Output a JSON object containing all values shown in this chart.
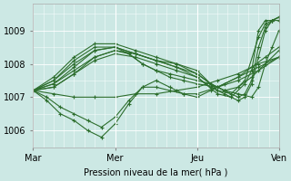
{
  "title": "",
  "xlabel": "Pression niveau de la mer( hPa )",
  "ylabel": "",
  "bg_color": "#cce8e4",
  "plot_bg_color": "#cce8e4",
  "line_color": "#2d6e2d",
  "ylim": [
    1005.5,
    1009.8
  ],
  "xlim": [
    0,
    72
  ],
  "xtick_labels": [
    "Mar",
    "Mer",
    "Jeu",
    "Ven"
  ],
  "xtick_positions": [
    0,
    24,
    48,
    72
  ],
  "ytick_labels": [
    "1006",
    "1007",
    "1008",
    "1009"
  ],
  "ytick_values": [
    1006,
    1007,
    1008,
    1009
  ],
  "grid_color": "#b0d8d2",
  "series": [
    {
      "x": [
        0,
        6,
        12,
        18,
        24,
        30,
        36,
        42,
        48,
        54,
        60,
        66,
        72
      ],
      "y": [
        1007.2,
        1007.1,
        1007.0,
        1007.0,
        1007.0,
        1007.1,
        1007.1,
        1007.2,
        1007.3,
        1007.5,
        1007.7,
        1008.0,
        1008.2
      ]
    },
    {
      "x": [
        0,
        4,
        8,
        12,
        16,
        20,
        24,
        28,
        32,
        36,
        40,
        44,
        48,
        52,
        56,
        60,
        64,
        68,
        72
      ],
      "y": [
        1007.2,
        1006.9,
        1006.5,
        1006.3,
        1006.0,
        1005.8,
        1006.2,
        1006.8,
        1007.3,
        1007.5,
        1007.3,
        1007.1,
        1007.0,
        1007.2,
        1007.4,
        1007.6,
        1007.9,
        1008.2,
        1008.5
      ]
    },
    {
      "x": [
        0,
        4,
        8,
        12,
        16,
        20,
        24,
        28,
        32,
        36,
        40,
        44,
        48,
        54,
        60,
        66,
        72
      ],
      "y": [
        1007.2,
        1007.0,
        1006.7,
        1006.5,
        1006.3,
        1006.1,
        1006.4,
        1006.9,
        1007.3,
        1007.3,
        1007.2,
        1007.1,
        1007.1,
        1007.3,
        1007.6,
        1007.9,
        1008.2
      ]
    },
    {
      "x": [
        0,
        6,
        12,
        18,
        24,
        28,
        32,
        36,
        40,
        44,
        48,
        54,
        60,
        66,
        72
      ],
      "y": [
        1007.2,
        1007.3,
        1007.7,
        1008.2,
        1008.4,
        1008.3,
        1008.0,
        1007.8,
        1007.6,
        1007.5,
        1007.4,
        1007.3,
        1007.5,
        1007.8,
        1008.2
      ]
    },
    {
      "x": [
        0,
        6,
        12,
        18,
        24,
        28,
        32,
        36,
        40,
        44,
        48,
        52,
        56,
        60,
        64,
        68,
        72
      ],
      "y": [
        1007.2,
        1007.4,
        1007.9,
        1008.4,
        1008.5,
        1008.3,
        1008.0,
        1007.8,
        1007.7,
        1007.6,
        1007.5,
        1007.4,
        1007.2,
        1007.3,
        1007.6,
        1008.0,
        1008.4
      ]
    },
    {
      "x": [
        0,
        6,
        12,
        18,
        24,
        30,
        36,
        42,
        48,
        52,
        56,
        60,
        64,
        66,
        68,
        70,
        72
      ],
      "y": [
        1007.2,
        1007.5,
        1008.0,
        1008.4,
        1008.5,
        1008.3,
        1008.1,
        1008.0,
        1007.7,
        1007.4,
        1007.2,
        1007.1,
        1007.0,
        1007.3,
        1008.0,
        1008.5,
        1009.0
      ]
    },
    {
      "x": [
        0,
        6,
        12,
        18,
        24,
        30,
        36,
        42,
        48,
        54,
        58,
        62,
        66,
        68,
        70,
        72
      ],
      "y": [
        1007.2,
        1007.6,
        1008.2,
        1008.6,
        1008.6,
        1008.4,
        1008.2,
        1008.0,
        1007.8,
        1007.2,
        1007.1,
        1007.5,
        1008.8,
        1009.2,
        1009.3,
        1009.4
      ]
    },
    {
      "x": [
        0,
        6,
        12,
        18,
        24,
        30,
        36,
        42,
        48,
        54,
        58,
        62,
        64,
        66,
        68,
        70,
        72
      ],
      "y": [
        1007.2,
        1007.5,
        1008.1,
        1008.5,
        1008.5,
        1008.3,
        1008.1,
        1007.9,
        1007.6,
        1007.1,
        1007.0,
        1007.4,
        1007.8,
        1009.0,
        1009.3,
        1009.3,
        1009.4
      ]
    },
    {
      "x": [
        0,
        6,
        12,
        18,
        24,
        30,
        36,
        42,
        48,
        52,
        56,
        60,
        62,
        64,
        66,
        68,
        70,
        72
      ],
      "y": [
        1007.2,
        1007.4,
        1007.8,
        1008.2,
        1008.4,
        1008.3,
        1008.1,
        1007.9,
        1007.7,
        1007.4,
        1007.2,
        1007.0,
        1007.1,
        1007.5,
        1008.5,
        1009.1,
        1009.3,
        1009.4
      ]
    },
    {
      "x": [
        0,
        6,
        12,
        18,
        24,
        30,
        36,
        42,
        48,
        52,
        56,
        60,
        62,
        64,
        66,
        68,
        70,
        72
      ],
      "y": [
        1007.2,
        1007.3,
        1007.7,
        1008.1,
        1008.3,
        1008.2,
        1008.0,
        1007.8,
        1007.6,
        1007.3,
        1007.1,
        1006.9,
        1007.0,
        1007.4,
        1008.2,
        1009.0,
        1009.3,
        1009.3
      ]
    }
  ]
}
